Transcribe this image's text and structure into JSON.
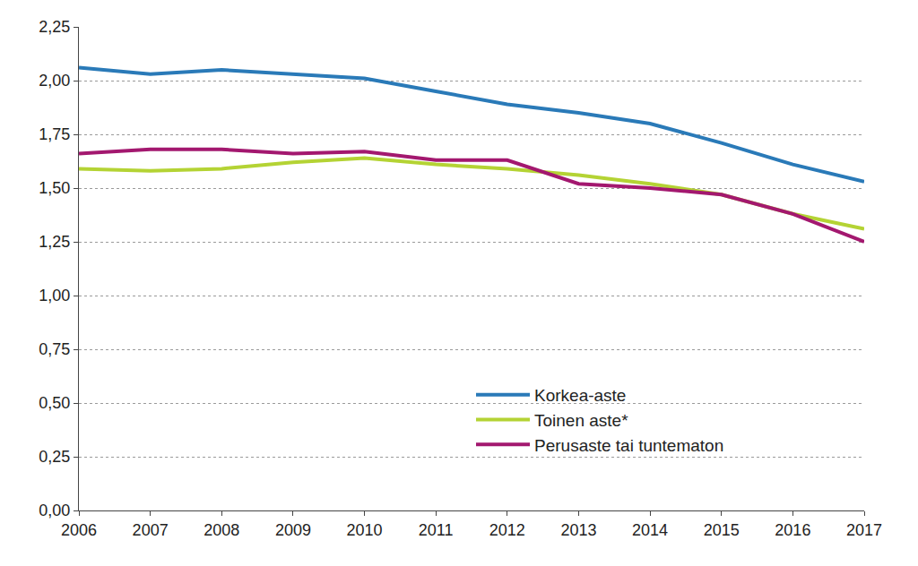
{
  "chart_data": {
    "type": "line",
    "x": [
      2006,
      2007,
      2008,
      2009,
      2010,
      2011,
      2012,
      2013,
      2014,
      2015,
      2016,
      2017
    ],
    "series": [
      {
        "name": "Korkea-aste",
        "color": "#2a7ab8",
        "values": [
          2.06,
          2.03,
          2.05,
          2.03,
          2.01,
          1.95,
          1.89,
          1.85,
          1.8,
          1.71,
          1.61,
          1.53
        ]
      },
      {
        "name": "Toinen aste*",
        "color": "#b4d334",
        "values": [
          1.59,
          1.58,
          1.59,
          1.62,
          1.64,
          1.61,
          1.59,
          1.56,
          1.52,
          1.47,
          1.38,
          1.31
        ]
      },
      {
        "name": "Perusaste tai tuntematon",
        "color": "#a3186f",
        "values": [
          1.66,
          1.68,
          1.68,
          1.66,
          1.67,
          1.63,
          1.63,
          1.52,
          1.5,
          1.47,
          1.38,
          1.25
        ]
      }
    ],
    "xlim": [
      2006,
      2017
    ],
    "xticks": [
      2006,
      2007,
      2008,
      2009,
      2010,
      2011,
      2012,
      2013,
      2014,
      2015,
      2016,
      2017
    ],
    "ylim": [
      0,
      2.25
    ],
    "yticks": [
      {
        "value": 0,
        "label": "0,00"
      },
      {
        "value": 0.25,
        "label": "0,25"
      },
      {
        "value": 0.5,
        "label": "0,50"
      },
      {
        "value": 0.75,
        "label": "0,75"
      },
      {
        "value": 1,
        "label": "1,00"
      },
      {
        "value": 1.25,
        "label": "1,25"
      },
      {
        "value": 1.5,
        "label": "1,50"
      },
      {
        "value": 1.75,
        "label": "1,75"
      },
      {
        "value": 2,
        "label": "2,00"
      },
      {
        "value": 2.25,
        "label": "2,25"
      }
    ],
    "grid": true,
    "legend": "lower right"
  }
}
